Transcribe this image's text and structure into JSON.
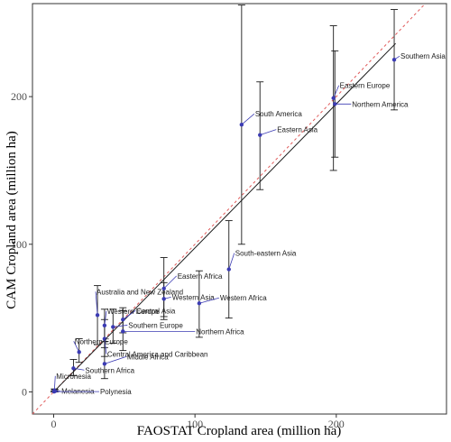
{
  "chart_data": {
    "type": "scatter",
    "xlabel": "FAOSTAT Cropland area (million ha)",
    "ylabel": "CAM Cropland area (million ha)",
    "xlim": [
      -15,
      278
    ],
    "ylim": [
      -15,
      263
    ],
    "xticks": [
      0,
      100,
      200
    ],
    "yticks": [
      0,
      100,
      200
    ],
    "grid": false,
    "reference_lines": [
      {
        "kind": "identity",
        "style": "dashed",
        "color": "#e05a5a"
      },
      {
        "kind": "regression",
        "style": "solid",
        "color": "#1a1a1a",
        "x": [
          0,
          242
        ],
        "y": [
          0,
          236
        ]
      }
    ],
    "colors": {
      "point": "#3b3bb3",
      "label_line": "#3b3bb3",
      "error_bar": "#1a1a1a"
    },
    "points": [
      {
        "label": "Southern Asia",
        "x": 241,
        "y": 225,
        "ymin": 191,
        "ymax": 259
      },
      {
        "label": "Eastern Europe",
        "x": 198,
        "y": 199,
        "ymin": 150,
        "ymax": 248
      },
      {
        "label": "Northern America",
        "x": 199,
        "y": 195,
        "ymin": 159,
        "ymax": 231
      },
      {
        "label": "South America",
        "x": 133,
        "y": 181,
        "ymin": 100,
        "ymax": 262
      },
      {
        "label": "Eastern Asia",
        "x": 146,
        "y": 174,
        "ymin": 137,
        "ymax": 210
      },
      {
        "label": "South-eastern Asia",
        "x": 124,
        "y": 83,
        "ymin": 50,
        "ymax": 116
      },
      {
        "label": "Eastern Africa",
        "x": 78,
        "y": 70,
        "ymin": 49,
        "ymax": 91
      },
      {
        "label": "Western Asia",
        "x": 78,
        "y": 63,
        "ymin": 51,
        "ymax": 74
      },
      {
        "label": "Western Africa",
        "x": 103,
        "y": 60,
        "ymin": 37,
        "ymax": 82
      },
      {
        "label": "Central Asia",
        "x": 49,
        "y": 49,
        "ymin": 40,
        "ymax": 57
      },
      {
        "label": "Northern Africa",
        "x": 49,
        "y": 41,
        "ymin": 28,
        "ymax": 55
      },
      {
        "label": "Southern Europe",
        "x": 42,
        "y": 44,
        "ymin": 33,
        "ymax": 56
      },
      {
        "label": "Western Europe",
        "x": 36,
        "y": 45,
        "ymin": 34,
        "ymax": 56
      },
      {
        "label": "Australia and New Zealand",
        "x": 31,
        "y": 52,
        "ymin": 32,
        "ymax": 72
      },
      {
        "label": "Central America and Caribbean",
        "x": 36,
        "y": 36,
        "ymin": 24,
        "ymax": 49
      },
      {
        "label": "Middle Africa",
        "x": 36,
        "y": 19,
        "ymin": 9,
        "ymax": 30
      },
      {
        "label": "Northern Europe",
        "x": 18,
        "y": 27,
        "ymin": 20,
        "ymax": 36
      },
      {
        "label": "Southern Africa",
        "x": 14,
        "y": 16,
        "ymin": 11,
        "ymax": 22
      },
      {
        "label": "Micronesia",
        "x": 0.5,
        "y": 1,
        "ymin": 0,
        "ymax": 2
      },
      {
        "label": "Melanesia",
        "x": 1,
        "y": 0.5,
        "ymin": 0,
        "ymax": 1.5
      },
      {
        "label": "Polynesia",
        "x": 0.3,
        "y": 0.2,
        "ymin": 0,
        "ymax": 0.8
      }
    ]
  }
}
